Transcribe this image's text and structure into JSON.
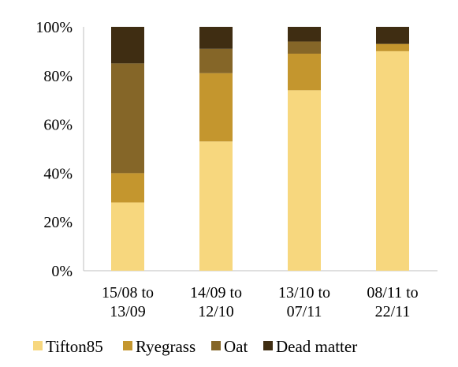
{
  "chart_data": {
    "type": "bar",
    "stacked": true,
    "percent_stacked": true,
    "categories": [
      [
        "15/08 to",
        "13/09"
      ],
      [
        "14/09 to",
        "12/10"
      ],
      [
        "13/10 to",
        "07/11"
      ],
      [
        "08/11 to",
        "22/11"
      ]
    ],
    "series": [
      {
        "name": "Tifton85",
        "color": "#f7d77e",
        "values": [
          28,
          53,
          74,
          90
        ]
      },
      {
        "name": "Ryegrass",
        "color": "#c4962e",
        "values": [
          12,
          28,
          15,
          3
        ]
      },
      {
        "name": "Oat",
        "color": "#856628",
        "values": [
          45,
          10,
          5,
          0
        ]
      },
      {
        "name": "Dead matter",
        "color": "#3f2d12",
        "values": [
          15,
          9,
          6,
          7
        ]
      }
    ],
    "ylim": [
      0,
      100
    ],
    "yticks": [
      0,
      20,
      40,
      60,
      80,
      100
    ],
    "ytick_labels": [
      "0%",
      "20%",
      "40%",
      "60%",
      "80%",
      "100%"
    ],
    "grid": false,
    "legend": "bottom"
  }
}
